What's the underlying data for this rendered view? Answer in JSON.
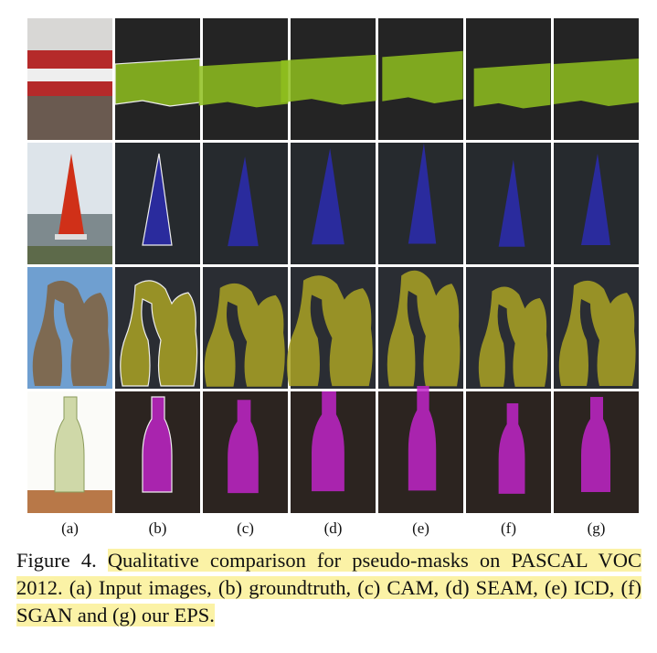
{
  "figure": {
    "column_labels": [
      "(a)",
      "(b)",
      "(c)",
      "(d)",
      "(e)",
      "(f)",
      "(g)"
    ]
  },
  "caption": {
    "label": "Figure 4.",
    "text": "Qualitative comparison for pseudo-masks on PASCAL VOC 2012.  (a) Input images, (b) groundtruth, (c) CAM, (d) SEAM, (e) ICD, (f) SGAN and (g) our EPS."
  }
}
